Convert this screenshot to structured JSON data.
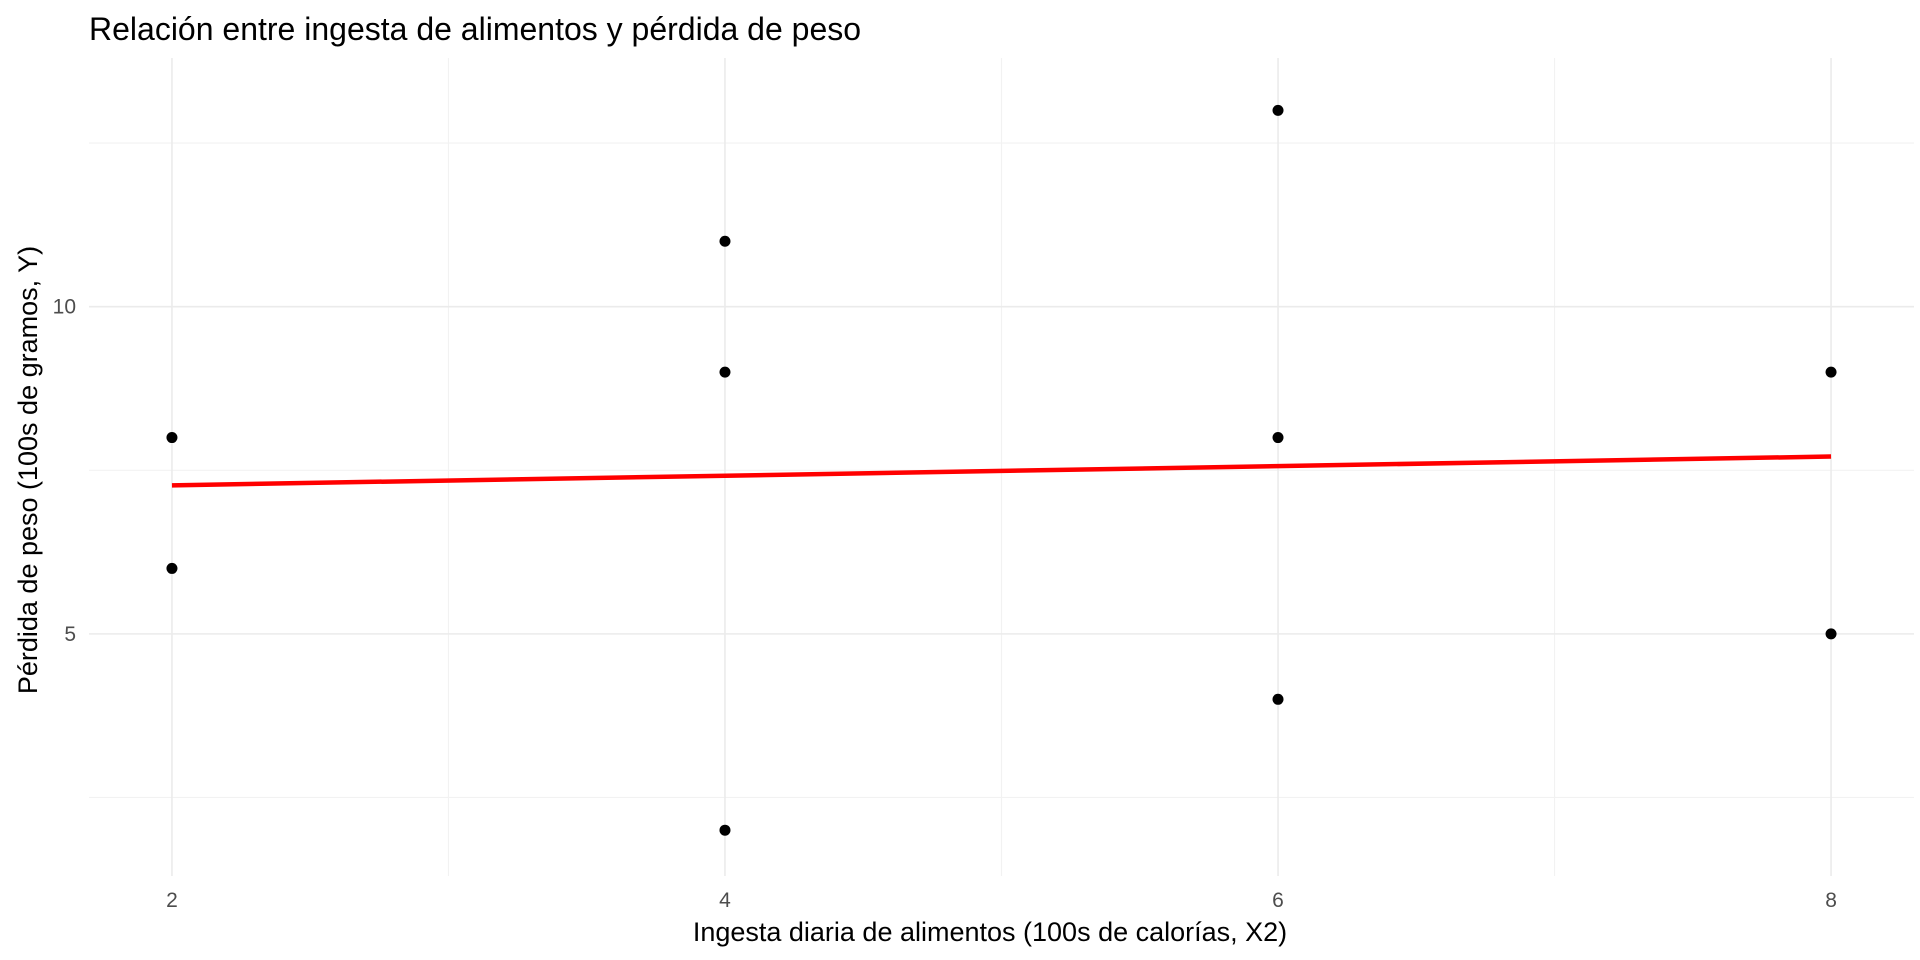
{
  "chart_data": {
    "type": "scatter",
    "title": "Relación entre ingesta de alimentos y pérdida de peso",
    "xlabel": "Ingesta diaria de alimentos (100s de calorías, X2)",
    "ylabel": "Pérdida de peso (100s de gramos, Y)",
    "xlim": [
      1.7,
      8.3
    ],
    "ylim": [
      1.3,
      13.8
    ],
    "x_ticks": [
      2,
      4,
      6,
      8
    ],
    "y_ticks": [
      5,
      10
    ],
    "x_minor_ticks": [
      3,
      5,
      7
    ],
    "y_minor_ticks": [
      2.5,
      7.5,
      12.5
    ],
    "grid": true,
    "points": [
      {
        "x": 2,
        "y": 8
      },
      {
        "x": 2,
        "y": 6
      },
      {
        "x": 4,
        "y": 11
      },
      {
        "x": 4,
        "y": 9
      },
      {
        "x": 4,
        "y": 2
      },
      {
        "x": 6,
        "y": 13
      },
      {
        "x": 6,
        "y": 8
      },
      {
        "x": 6,
        "y": 4
      },
      {
        "x": 8,
        "y": 9
      },
      {
        "x": 8,
        "y": 5
      }
    ],
    "trend_line": {
      "color": "#ff0000",
      "start": {
        "x": 2,
        "y": 7.27
      },
      "end": {
        "x": 8,
        "y": 7.71
      }
    },
    "colors": {
      "points": "#000000",
      "trend": "#ff0000",
      "grid": "#ebebeb"
    }
  }
}
